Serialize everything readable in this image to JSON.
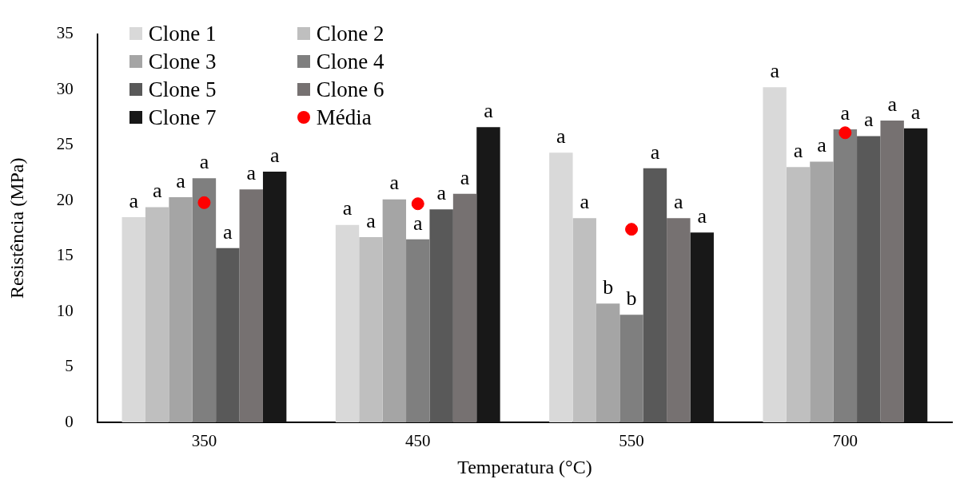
{
  "chart_data": {
    "type": "bar",
    "xlabel": "Temperatura (°C)",
    "ylabel": "Resistência (MPa)",
    "categories": [
      "350",
      "450",
      "550",
      "700"
    ],
    "ylim": [
      0,
      35
    ],
    "yticks": [
      0,
      5,
      10,
      15,
      20,
      25,
      30,
      35
    ],
    "grid": false,
    "legend": "top left",
    "series": [
      {
        "name": "Clone 1",
        "color": "#d9d9d9",
        "values": [
          18.5,
          17.8,
          24.3,
          30.2
        ],
        "value_labels": [
          "a",
          "a",
          "a",
          "a"
        ]
      },
      {
        "name": "Clone 2",
        "color": "#bfbfbf",
        "values": [
          19.4,
          16.7,
          18.4,
          23.0
        ],
        "value_labels": [
          "a",
          "a",
          "a",
          "a"
        ]
      },
      {
        "name": "Clone 3",
        "color": "#a5a5a5",
        "values": [
          20.3,
          20.1,
          10.7,
          23.5
        ],
        "value_labels": [
          "a",
          "a",
          "b",
          "a"
        ]
      },
      {
        "name": "Clone 4",
        "color": "#7f7f7f",
        "values": [
          22.0,
          16.5,
          9.7,
          26.4
        ],
        "value_labels": [
          "a",
          "a",
          "b",
          "a"
        ]
      },
      {
        "name": "Clone 5",
        "color": "#595959",
        "values": [
          15.7,
          19.2,
          22.9,
          25.8
        ],
        "value_labels": [
          "a",
          "a",
          "a",
          "a"
        ]
      },
      {
        "name": "Clone 6",
        "color": "#767171",
        "values": [
          21.0,
          20.6,
          18.4,
          27.2
        ],
        "value_labels": [
          "a",
          "a",
          "a",
          "a"
        ]
      },
      {
        "name": "Clone 7",
        "color": "#181818",
        "values": [
          22.6,
          26.6,
          17.1,
          26.5
        ],
        "value_labels": [
          "a",
          "a",
          "a",
          "a"
        ]
      },
      {
        "name": "Média",
        "type": "scatter",
        "marker": "circle",
        "color": "#ff0000",
        "x": [
          "350",
          "450",
          "550",
          "700"
        ],
        "values": [
          19.8,
          19.7,
          17.4,
          26.1
        ]
      }
    ]
  }
}
